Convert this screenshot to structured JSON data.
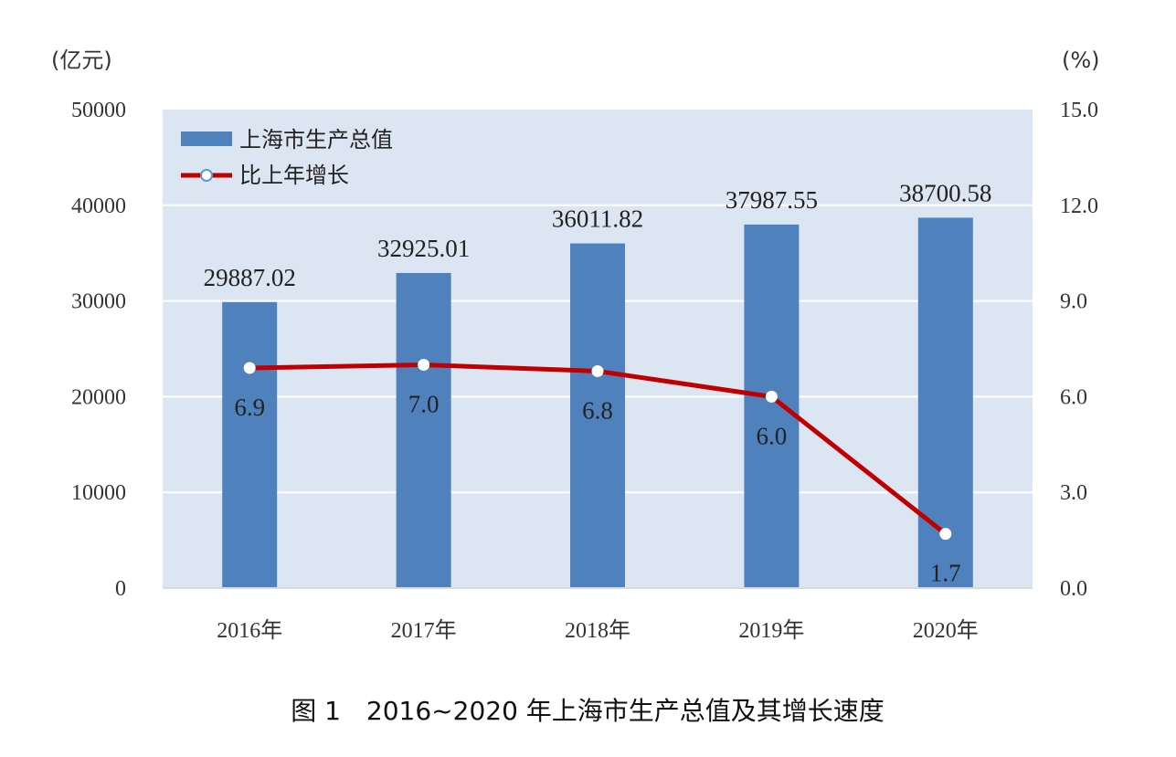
{
  "chart_data": {
    "type": "bar+line",
    "categories": [
      "2016年",
      "2017年",
      "2018年",
      "2019年",
      "2020年"
    ],
    "series": [
      {
        "name": "上海市生产总值",
        "type": "bar",
        "axis": "left",
        "values": [
          29887.02,
          32925.01,
          36011.82,
          37987.55,
          38700.58
        ],
        "labels": [
          "29887.02",
          "32925.01",
          "36011.82",
          "37987.55",
          "38700.58"
        ],
        "color": "#4f81bd"
      },
      {
        "name": "比上年增长",
        "type": "line",
        "axis": "right",
        "values": [
          6.9,
          7.0,
          6.8,
          6.0,
          1.7
        ],
        "labels": [
          "6.9",
          "7.0",
          "6.8",
          "6.0",
          "1.7"
        ],
        "color": "#c00000"
      }
    ],
    "y_left": {
      "unit": "(亿元)",
      "ylim": [
        0,
        50000
      ],
      "ticks": [
        "0",
        "10000",
        "20000",
        "30000",
        "40000",
        "50000"
      ]
    },
    "y_right": {
      "unit": "(%)",
      "ylim": [
        0,
        15
      ],
      "ticks": [
        "0.0",
        "3.0",
        "6.0",
        "9.0",
        "12.0",
        "15.0"
      ]
    },
    "grid": true,
    "legend": "top-left",
    "caption": "图 1　2016~2020 年上海市生产总值及其增长速度",
    "plot_background": "#dce6f2"
  }
}
